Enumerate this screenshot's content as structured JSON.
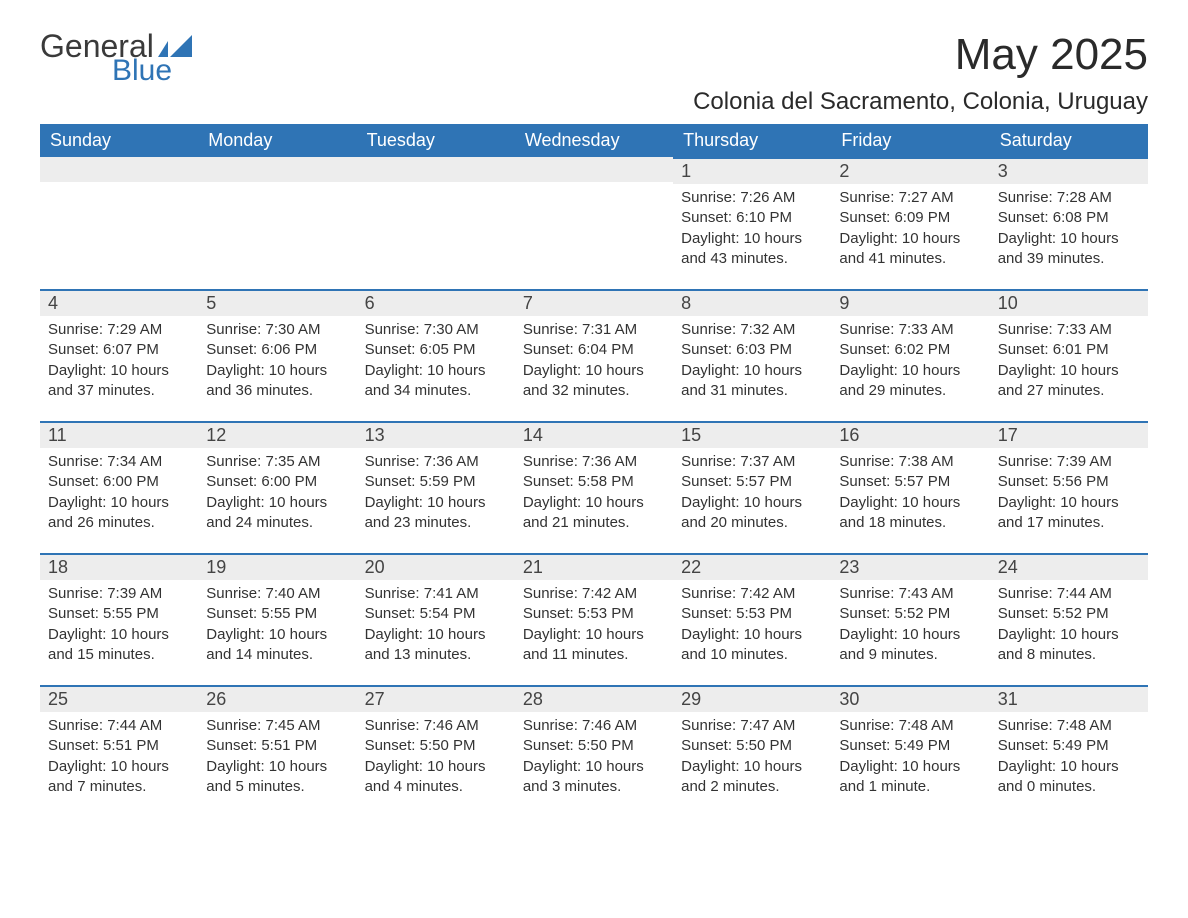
{
  "logo": {
    "general": "General",
    "blue": "Blue",
    "flag_color": "#2f74b5"
  },
  "title": "May 2025",
  "location": "Colonia del Sacramento, Colonia, Uruguay",
  "colors": {
    "header_bg": "#2f74b5",
    "header_text": "#ffffff",
    "daynum_bg": "#ededed",
    "daynum_border": "#2f74b5",
    "body_bg": "#ffffff",
    "text": "#333333"
  },
  "fonts": {
    "title_size": 44,
    "location_size": 24,
    "th_size": 18,
    "cell_size": 15
  },
  "weekdays": [
    "Sunday",
    "Monday",
    "Tuesday",
    "Wednesday",
    "Thursday",
    "Friday",
    "Saturday"
  ],
  "weeks": [
    [
      {
        "empty": true
      },
      {
        "empty": true
      },
      {
        "empty": true
      },
      {
        "empty": true
      },
      {
        "day": "1",
        "sunrise": "Sunrise: 7:26 AM",
        "sunset": "Sunset: 6:10 PM",
        "daylight": "Daylight: 10 hours and 43 minutes."
      },
      {
        "day": "2",
        "sunrise": "Sunrise: 7:27 AM",
        "sunset": "Sunset: 6:09 PM",
        "daylight": "Daylight: 10 hours and 41 minutes."
      },
      {
        "day": "3",
        "sunrise": "Sunrise: 7:28 AM",
        "sunset": "Sunset: 6:08 PM",
        "daylight": "Daylight: 10 hours and 39 minutes."
      }
    ],
    [
      {
        "day": "4",
        "sunrise": "Sunrise: 7:29 AM",
        "sunset": "Sunset: 6:07 PM",
        "daylight": "Daylight: 10 hours and 37 minutes."
      },
      {
        "day": "5",
        "sunrise": "Sunrise: 7:30 AM",
        "sunset": "Sunset: 6:06 PM",
        "daylight": "Daylight: 10 hours and 36 minutes."
      },
      {
        "day": "6",
        "sunrise": "Sunrise: 7:30 AM",
        "sunset": "Sunset: 6:05 PM",
        "daylight": "Daylight: 10 hours and 34 minutes."
      },
      {
        "day": "7",
        "sunrise": "Sunrise: 7:31 AM",
        "sunset": "Sunset: 6:04 PM",
        "daylight": "Daylight: 10 hours and 32 minutes."
      },
      {
        "day": "8",
        "sunrise": "Sunrise: 7:32 AM",
        "sunset": "Sunset: 6:03 PM",
        "daylight": "Daylight: 10 hours and 31 minutes."
      },
      {
        "day": "9",
        "sunrise": "Sunrise: 7:33 AM",
        "sunset": "Sunset: 6:02 PM",
        "daylight": "Daylight: 10 hours and 29 minutes."
      },
      {
        "day": "10",
        "sunrise": "Sunrise: 7:33 AM",
        "sunset": "Sunset: 6:01 PM",
        "daylight": "Daylight: 10 hours and 27 minutes."
      }
    ],
    [
      {
        "day": "11",
        "sunrise": "Sunrise: 7:34 AM",
        "sunset": "Sunset: 6:00 PM",
        "daylight": "Daylight: 10 hours and 26 minutes."
      },
      {
        "day": "12",
        "sunrise": "Sunrise: 7:35 AM",
        "sunset": "Sunset: 6:00 PM",
        "daylight": "Daylight: 10 hours and 24 minutes."
      },
      {
        "day": "13",
        "sunrise": "Sunrise: 7:36 AM",
        "sunset": "Sunset: 5:59 PM",
        "daylight": "Daylight: 10 hours and 23 minutes."
      },
      {
        "day": "14",
        "sunrise": "Sunrise: 7:36 AM",
        "sunset": "Sunset: 5:58 PM",
        "daylight": "Daylight: 10 hours and 21 minutes."
      },
      {
        "day": "15",
        "sunrise": "Sunrise: 7:37 AM",
        "sunset": "Sunset: 5:57 PM",
        "daylight": "Daylight: 10 hours and 20 minutes."
      },
      {
        "day": "16",
        "sunrise": "Sunrise: 7:38 AM",
        "sunset": "Sunset: 5:57 PM",
        "daylight": "Daylight: 10 hours and 18 minutes."
      },
      {
        "day": "17",
        "sunrise": "Sunrise: 7:39 AM",
        "sunset": "Sunset: 5:56 PM",
        "daylight": "Daylight: 10 hours and 17 minutes."
      }
    ],
    [
      {
        "day": "18",
        "sunrise": "Sunrise: 7:39 AM",
        "sunset": "Sunset: 5:55 PM",
        "daylight": "Daylight: 10 hours and 15 minutes."
      },
      {
        "day": "19",
        "sunrise": "Sunrise: 7:40 AM",
        "sunset": "Sunset: 5:55 PM",
        "daylight": "Daylight: 10 hours and 14 minutes."
      },
      {
        "day": "20",
        "sunrise": "Sunrise: 7:41 AM",
        "sunset": "Sunset: 5:54 PM",
        "daylight": "Daylight: 10 hours and 13 minutes."
      },
      {
        "day": "21",
        "sunrise": "Sunrise: 7:42 AM",
        "sunset": "Sunset: 5:53 PM",
        "daylight": "Daylight: 10 hours and 11 minutes."
      },
      {
        "day": "22",
        "sunrise": "Sunrise: 7:42 AM",
        "sunset": "Sunset: 5:53 PM",
        "daylight": "Daylight: 10 hours and 10 minutes."
      },
      {
        "day": "23",
        "sunrise": "Sunrise: 7:43 AM",
        "sunset": "Sunset: 5:52 PM",
        "daylight": "Daylight: 10 hours and 9 minutes."
      },
      {
        "day": "24",
        "sunrise": "Sunrise: 7:44 AM",
        "sunset": "Sunset: 5:52 PM",
        "daylight": "Daylight: 10 hours and 8 minutes."
      }
    ],
    [
      {
        "day": "25",
        "sunrise": "Sunrise: 7:44 AM",
        "sunset": "Sunset: 5:51 PM",
        "daylight": "Daylight: 10 hours and 7 minutes."
      },
      {
        "day": "26",
        "sunrise": "Sunrise: 7:45 AM",
        "sunset": "Sunset: 5:51 PM",
        "daylight": "Daylight: 10 hours and 5 minutes."
      },
      {
        "day": "27",
        "sunrise": "Sunrise: 7:46 AM",
        "sunset": "Sunset: 5:50 PM",
        "daylight": "Daylight: 10 hours and 4 minutes."
      },
      {
        "day": "28",
        "sunrise": "Sunrise: 7:46 AM",
        "sunset": "Sunset: 5:50 PM",
        "daylight": "Daylight: 10 hours and 3 minutes."
      },
      {
        "day": "29",
        "sunrise": "Sunrise: 7:47 AM",
        "sunset": "Sunset: 5:50 PM",
        "daylight": "Daylight: 10 hours and 2 minutes."
      },
      {
        "day": "30",
        "sunrise": "Sunrise: 7:48 AM",
        "sunset": "Sunset: 5:49 PM",
        "daylight": "Daylight: 10 hours and 1 minute."
      },
      {
        "day": "31",
        "sunrise": "Sunrise: 7:48 AM",
        "sunset": "Sunset: 5:49 PM",
        "daylight": "Daylight: 10 hours and 0 minutes."
      }
    ]
  ]
}
